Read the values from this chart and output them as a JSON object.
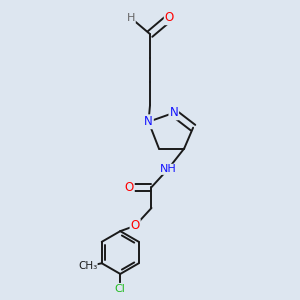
{
  "bg_color": "#dde6f0",
  "atom_colors": {
    "C": "#1a1a1a",
    "N": "#1414ff",
    "O": "#ff0000",
    "Cl": "#22bb22",
    "H": "#666666"
  },
  "bond_color": "#1a1a1a",
  "bond_width": 1.4,
  "font_size": 8.5
}
